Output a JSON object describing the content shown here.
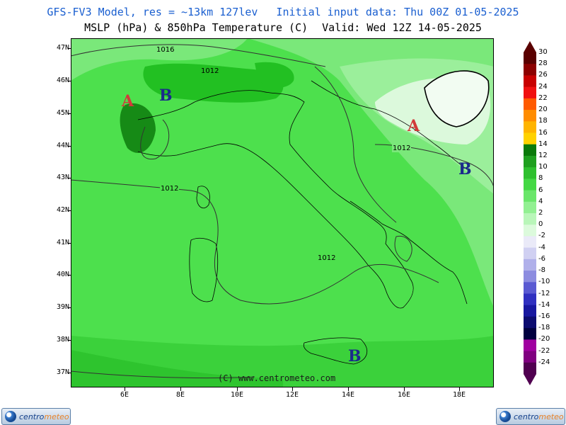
{
  "header": {
    "line1_model": "GFS-FV3 Model, res = ~13km 127lev",
    "line1_init": "Initial input data: Thu 00Z 01-05-2025",
    "line2_field": "MSLP (hPa) & 850hPa Temperature (C)",
    "line2_valid": "Valid: Wed 12Z 14-05-2025"
  },
  "map": {
    "latitudes": [
      "47N",
      "46N",
      "45N",
      "44N",
      "43N",
      "42N",
      "41N",
      "40N",
      "39N",
      "38N",
      "37N"
    ],
    "longitudes": [
      "6E",
      "8E",
      "10E",
      "12E",
      "14E",
      "16E",
      "18E"
    ],
    "isobars": [
      "1016",
      "1012",
      "1012",
      "1012",
      "1012"
    ],
    "pressure_centers": [
      {
        "label": "A",
        "type": "high",
        "color": "#d23a3a"
      },
      {
        "label": "B",
        "type": "low",
        "color": "#1b2a8c"
      },
      {
        "label": "A",
        "type": "high",
        "color": "#d23a3a"
      },
      {
        "label": "B",
        "type": "low",
        "color": "#1b2a8c"
      },
      {
        "label": "B",
        "type": "low",
        "color": "#1b2a8c"
      }
    ],
    "watermark": "(C) www.centrometeo.com"
  },
  "legend": {
    "values": [
      "30",
      "28",
      "26",
      "24",
      "22",
      "20",
      "18",
      "16",
      "14",
      "12",
      "10",
      "8",
      "6",
      "4",
      "2",
      "0",
      "-2",
      "-4",
      "-6",
      "-8",
      "-10",
      "-12",
      "-14",
      "-16",
      "-18",
      "-20",
      "-22",
      "-24"
    ],
    "colors": [
      "#5a0000",
      "#8c0000",
      "#c80000",
      "#f01010",
      "#ff5a00",
      "#ff8c00",
      "#ffb400",
      "#ffd200",
      "#0a7a0a",
      "#1fa01f",
      "#2fc02f",
      "#44d844",
      "#6ae66a",
      "#92f092",
      "#b9f6b9",
      "#dcfadc",
      "#eaeaf8",
      "#d0d0f2",
      "#b0b0ea",
      "#8c8ce0",
      "#5a5ad2",
      "#3030c0",
      "#1818a0",
      "#0c0c70",
      "#000040",
      "#a000a0",
      "#800080",
      "#500050"
    ]
  },
  "logos": {
    "brand_a": "centro",
    "brand_b": "meteo"
  }
}
